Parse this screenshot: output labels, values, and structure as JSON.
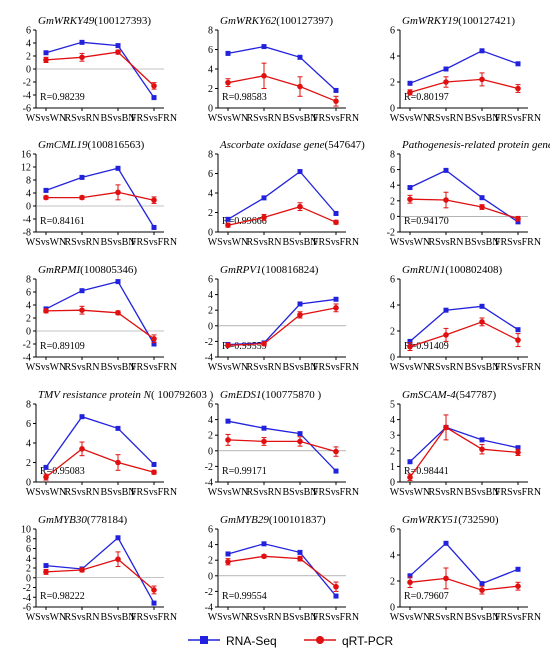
{
  "chart_data": [
    {
      "type": "line",
      "title_italic": "GmWRKY49",
      "title_rest": "(100127393)",
      "categories": [
        "WSvsWN",
        "RSvsRN",
        "BSvsBN",
        "FRSvsFRN"
      ],
      "ylim": [
        -6,
        6
      ],
      "yticks": [
        -6,
        -4,
        -2,
        0,
        2,
        4,
        6
      ],
      "r_label": "R=0.98239",
      "series": [
        {
          "name": "RNA-Seq",
          "values": [
            2.5,
            4.1,
            3.6,
            -4.4
          ]
        },
        {
          "name": "qRT-PCR",
          "values": [
            1.4,
            1.8,
            2.6,
            -2.6
          ],
          "errors": [
            0.4,
            0.6,
            0.3,
            0.5
          ]
        }
      ]
    },
    {
      "type": "line",
      "title_italic": "GmWRKY62",
      "title_rest": "(100127397)",
      "categories": [
        "WSvsWN",
        "RSvsRN",
        "BSvsBN",
        "FRSvsFRN"
      ],
      "ylim": [
        0,
        8
      ],
      "yticks": [
        0,
        2,
        4,
        6,
        8
      ],
      "r_label": "R=0.98583",
      "series": [
        {
          "name": "RNA-Seq",
          "values": [
            5.6,
            6.3,
            5.2,
            1.8
          ]
        },
        {
          "name": "qRT-PCR",
          "values": [
            2.6,
            3.3,
            2.2,
            0.7
          ],
          "errors": [
            0.4,
            1.3,
            1.0,
            0.5
          ]
        }
      ]
    },
    {
      "type": "line",
      "title_italic": "GmWRKY19",
      "title_rest": "(100127421)",
      "categories": [
        "WSvsWN",
        "RSvsRN",
        "BSvsBN",
        "FRSvsFRN"
      ],
      "ylim": [
        0,
        6
      ],
      "yticks": [
        0,
        2,
        4,
        6
      ],
      "r_label": "R=0.80197",
      "series": [
        {
          "name": "RNA-Seq",
          "values": [
            1.9,
            3.0,
            4.4,
            3.4
          ]
        },
        {
          "name": "qRT-PCR",
          "values": [
            1.2,
            2.0,
            2.2,
            1.5
          ],
          "errors": [
            0.2,
            0.4,
            0.5,
            0.3
          ]
        }
      ]
    },
    {
      "type": "line",
      "title_italic": "GmCML19",
      "title_rest": "(100816563)",
      "categories": [
        "WSvsWN",
        "RSvsRN",
        "BSvsBN",
        "FRSvsFRN"
      ],
      "ylim": [
        -8,
        16
      ],
      "yticks": [
        -8,
        -4,
        0,
        4,
        8,
        12,
        16
      ],
      "r_label": "R=0.84161",
      "series": [
        {
          "name": "RNA-Seq",
          "values": [
            4.8,
            8.8,
            11.6,
            -6.6
          ]
        },
        {
          "name": "qRT-PCR",
          "values": [
            2.6,
            2.6,
            4.2,
            1.8
          ],
          "errors": [
            0.5,
            0.5,
            2.3,
            1.0
          ]
        }
      ]
    },
    {
      "type": "line",
      "title_italic": "Ascorbate oxidase gene",
      "title_rest": "(547647)",
      "categories": [
        "WSvsWN",
        "RSvsRN",
        "BSvsBN",
        "FRSvsFRN"
      ],
      "ylim": [
        0,
        8
      ],
      "yticks": [
        0,
        2,
        4,
        6,
        8
      ],
      "r_label": "R=0.99666",
      "series": [
        {
          "name": "RNA-Seq",
          "values": [
            1.3,
            3.5,
            6.2,
            1.9
          ]
        },
        {
          "name": "qRT-PCR",
          "values": [
            0.7,
            1.5,
            2.6,
            1.0
          ],
          "errors": [
            0.2,
            0.3,
            0.4,
            0.2
          ]
        }
      ]
    },
    {
      "type": "line",
      "title_italic": "Pathogenesis-related protein gene",
      "title_rest": "(100306363)",
      "categories": [
        "WSvsWN",
        "RSvsRN",
        "BSvsBN",
        "FRSvsFRN"
      ],
      "ylim": [
        -2,
        8
      ],
      "yticks": [
        -2,
        0,
        2,
        4,
        6,
        8
      ],
      "r_label": "R=0.94170",
      "series": [
        {
          "name": "RNA-Seq",
          "values": [
            3.7,
            5.9,
            2.4,
            -0.7
          ]
        },
        {
          "name": "qRT-PCR",
          "values": [
            2.2,
            2.1,
            1.2,
            -0.3
          ],
          "errors": [
            0.5,
            1.0,
            0.3,
            0.3
          ]
        }
      ]
    },
    {
      "type": "line",
      "title_italic": "GmRPMI",
      "title_rest": "(100805346)",
      "categories": [
        "WSvsWN",
        "RSvsRN",
        "BSvsBN",
        "FRSvsFRN"
      ],
      "ylim": [
        -4,
        8
      ],
      "yticks": [
        -4,
        -2,
        0,
        2,
        4,
        6,
        8
      ],
      "r_label": "R=0.89109",
      "series": [
        {
          "name": "RNA-Seq",
          "values": [
            3.4,
            6.2,
            7.6,
            -2.0
          ]
        },
        {
          "name": "qRT-PCR",
          "values": [
            3.1,
            3.2,
            2.8,
            -1.2
          ],
          "errors": [
            0.3,
            0.6,
            0.3,
            0.6
          ]
        }
      ]
    },
    {
      "type": "line",
      "title_italic": "GmRPV1",
      "title_rest": "(100816824)",
      "categories": [
        "WSvsWN",
        "RSvsRN",
        "BSvsBN",
        "FRSvsFRN"
      ],
      "ylim": [
        -4,
        6
      ],
      "yticks": [
        -4,
        -2,
        0,
        2,
        4,
        6
      ],
      "r_label": "R=0.99559",
      "series": [
        {
          "name": "RNA-Seq",
          "values": [
            -2.4,
            -2.2,
            2.8,
            3.4
          ]
        },
        {
          "name": "qRT-PCR",
          "values": [
            -2.5,
            -2.3,
            1.4,
            2.3
          ],
          "errors": [
            0.2,
            0.2,
            0.4,
            0.5
          ]
        }
      ]
    },
    {
      "type": "line",
      "title_italic": "GmRUN1",
      "title_rest": "(100802408)",
      "categories": [
        "WSvsWN",
        "RSvsRN",
        "BSvsBN",
        "FRSvsFRN"
      ],
      "ylim": [
        0,
        6
      ],
      "yticks": [
        0,
        2,
        4,
        6
      ],
      "r_label": "R=0.91409",
      "series": [
        {
          "name": "RNA-Seq",
          "values": [
            1.2,
            3.6,
            3.9,
            2.1
          ]
        },
        {
          "name": "qRT-PCR",
          "values": [
            0.8,
            1.7,
            2.7,
            1.3
          ],
          "errors": [
            0.3,
            0.5,
            0.3,
            0.5
          ]
        }
      ]
    },
    {
      "type": "line",
      "title_italic": "TMV resistance protein N",
      "title_rest": "( 100792603 )",
      "categories": [
        "WSvsWN",
        "RSvsRN",
        "BSvsBN",
        "FRSvsFRN"
      ],
      "ylim": [
        0,
        8
      ],
      "yticks": [
        0,
        2,
        4,
        6,
        8
      ],
      "r_label": "R=0.95083",
      "series": [
        {
          "name": "RNA-Seq",
          "values": [
            1.5,
            6.7,
            5.5,
            1.8
          ]
        },
        {
          "name": "qRT-PCR",
          "values": [
            0.5,
            3.4,
            2.0,
            1.0
          ],
          "errors": [
            0.3,
            0.7,
            0.8,
            0.2
          ]
        }
      ]
    },
    {
      "type": "line",
      "title_italic": "GmEDS1",
      "title_rest": "(100775870 )",
      "categories": [
        "WSvsWN",
        "RSvsRN",
        "BSvsBN",
        "FRSvsFRN"
      ],
      "ylim": [
        -4,
        6
      ],
      "yticks": [
        -4,
        -2,
        0,
        2,
        4,
        6
      ],
      "r_label": "R=0.99171",
      "series": [
        {
          "name": "RNA-Seq",
          "values": [
            3.8,
            2.9,
            2.2,
            -2.6
          ]
        },
        {
          "name": "qRT-PCR",
          "values": [
            1.4,
            1.2,
            1.2,
            -0.1
          ],
          "errors": [
            0.7,
            0.5,
            0.6,
            0.6
          ]
        }
      ]
    },
    {
      "type": "line",
      "title_italic": "GmSCAM-4",
      "title_rest": "(547787)",
      "categories": [
        "WSvsWN",
        "RSvsRN",
        "BSvsBN",
        "FRSvsFRN"
      ],
      "ylim": [
        0,
        5
      ],
      "yticks": [
        0,
        1,
        2,
        3,
        4,
        5
      ],
      "r_label": "R=0.98441",
      "series": [
        {
          "name": "RNA-Seq",
          "values": [
            1.3,
            3.5,
            2.7,
            2.2
          ]
        },
        {
          "name": "qRT-PCR",
          "values": [
            0.3,
            3.5,
            2.1,
            1.9
          ],
          "errors": [
            0.2,
            0.8,
            0.3,
            0.2
          ]
        }
      ]
    },
    {
      "type": "line",
      "title_italic": "GmMYB30",
      "title_rest": "(778184)",
      "categories": [
        "WSvsWN",
        "RSvsRN",
        "BSvsBN",
        "FRSvsFRN"
      ],
      "ylim": [
        -6,
        10
      ],
      "yticks": [
        -6,
        -4,
        -2,
        0,
        2,
        4,
        6,
        8,
        10
      ],
      "r_label": "R=0.98222",
      "series": [
        {
          "name": "RNA-Seq",
          "values": [
            2.5,
            1.8,
            8.2,
            -5.2
          ]
        },
        {
          "name": "qRT-PCR",
          "values": [
            1.2,
            1.6,
            3.8,
            -2.5
          ],
          "errors": [
            0.5,
            0.4,
            1.5,
            0.8
          ]
        }
      ]
    },
    {
      "type": "line",
      "title_italic": "GmMYB29",
      "title_rest": "(100101837)",
      "categories": [
        "WSvsWN",
        "RSvsRN",
        "BSvsBN",
        "FRSvsFRN"
      ],
      "ylim": [
        -4,
        6
      ],
      "yticks": [
        -4,
        -2,
        0,
        2,
        4,
        6
      ],
      "r_label": "R=0.99554",
      "series": [
        {
          "name": "RNA-Seq",
          "values": [
            2.8,
            4.1,
            3.0,
            -2.6
          ]
        },
        {
          "name": "qRT-PCR",
          "values": [
            1.8,
            2.5,
            2.2,
            -1.4
          ],
          "errors": [
            0.4,
            0.2,
            0.3,
            0.6
          ]
        }
      ]
    },
    {
      "type": "line",
      "title_italic": "GmWRKY51",
      "title_rest": "(732590)",
      "categories": [
        "WSvsWN",
        "RSvsRN",
        "BSvsBN",
        "FRSvsFRN"
      ],
      "ylim": [
        0,
        6
      ],
      "yticks": [
        0,
        2,
        4,
        6
      ],
      "r_label": "R=0.79607",
      "series": [
        {
          "name": "RNA-Seq",
          "values": [
            2.4,
            4.9,
            1.8,
            2.9
          ]
        },
        {
          "name": "qRT-PCR",
          "values": [
            1.9,
            2.2,
            1.3,
            1.6
          ],
          "errors": [
            0.4,
            0.8,
            0.3,
            0.3
          ]
        }
      ]
    }
  ],
  "legend": {
    "rna_label": "RNA-Seq",
    "qrt_label": "qRT-PCR",
    "rna_color": "#2222dd",
    "qrt_color": "#e01010"
  }
}
